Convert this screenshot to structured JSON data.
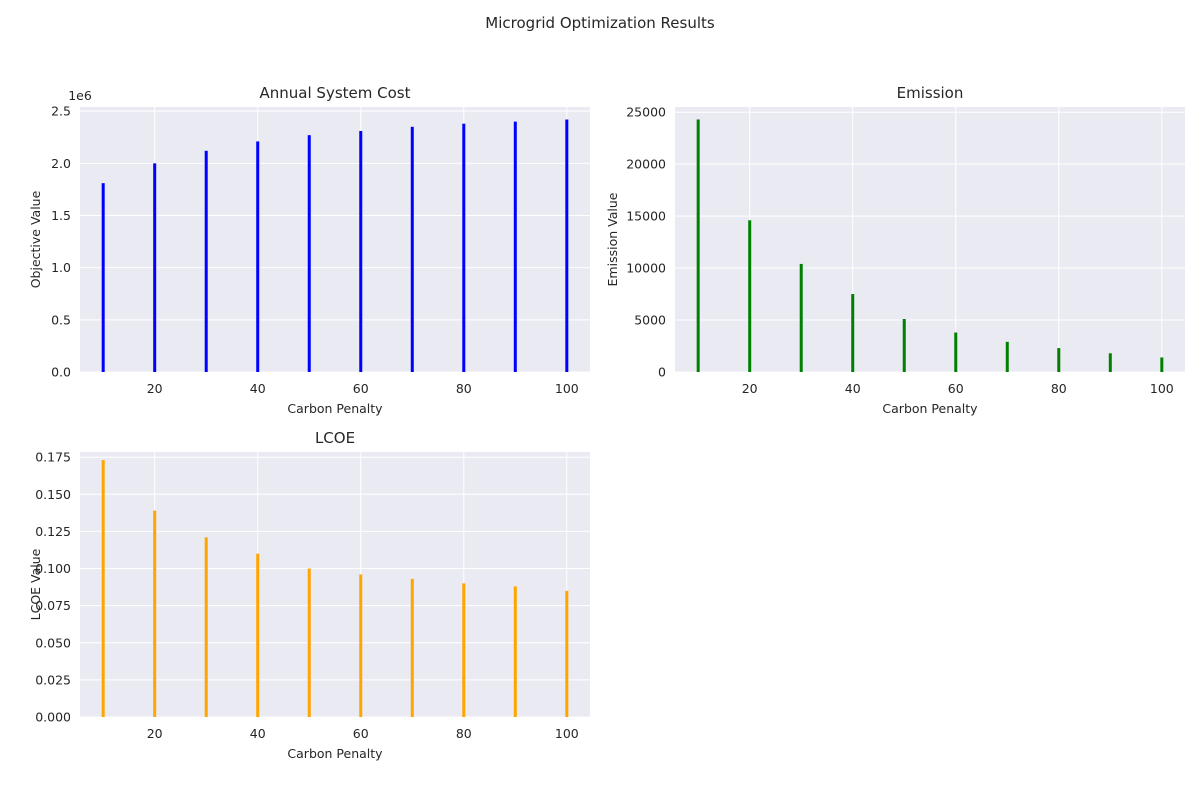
{
  "figure": {
    "suptitle": "Microgrid Optimization Results"
  },
  "chart_data": [
    {
      "type": "bar",
      "title": "Annual System Cost",
      "xlabel": "Carbon Penalty",
      "ylabel": "Objective Value",
      "offset_label": "1e6",
      "x": [
        10,
        20,
        30,
        40,
        50,
        60,
        70,
        80,
        90,
        100
      ],
      "values": [
        1810000,
        2000000,
        2120000,
        2210000,
        2270000,
        2310000,
        2350000,
        2380000,
        2400000,
        2420000
      ],
      "xlim": [
        5.5,
        104.5
      ],
      "ylim": [
        0,
        2.54
      ],
      "value_scale": 1000000,
      "xticks": [
        20,
        40,
        60,
        80,
        100
      ],
      "yticks": [
        0.0,
        0.5,
        1.0,
        1.5,
        2.0,
        2.5
      ],
      "ytick_decimals": 1,
      "color": "#0000ff",
      "grid": true
    },
    {
      "type": "bar",
      "title": "Emission",
      "xlabel": "Carbon Penalty",
      "ylabel": "Emission Value",
      "x": [
        10,
        20,
        30,
        40,
        50,
        60,
        70,
        80,
        90,
        100
      ],
      "values": [
        24300,
        14600,
        10400,
        7500,
        5100,
        3800,
        2900,
        2300,
        1800,
        1400
      ],
      "xlim": [
        5.5,
        104.5
      ],
      "ylim": [
        0,
        25500
      ],
      "value_scale": 1,
      "xticks": [
        20,
        40,
        60,
        80,
        100
      ],
      "yticks": [
        0,
        5000,
        10000,
        15000,
        20000,
        25000
      ],
      "ytick_decimals": 0,
      "color": "#008000",
      "grid": true
    },
    {
      "type": "bar",
      "title": "LCOE",
      "xlabel": "Carbon Penalty",
      "ylabel": "LCOE Value",
      "x": [
        10,
        20,
        30,
        40,
        50,
        60,
        70,
        80,
        90,
        100
      ],
      "values": [
        0.173,
        0.139,
        0.121,
        0.11,
        0.1,
        0.096,
        0.093,
        0.09,
        0.088,
        0.085
      ],
      "xlim": [
        5.5,
        104.5
      ],
      "ylim": [
        0,
        0.1785
      ],
      "value_scale": 1,
      "xticks": [
        20,
        40,
        60,
        80,
        100
      ],
      "yticks": [
        0.0,
        0.025,
        0.05,
        0.075,
        0.1,
        0.125,
        0.15,
        0.175
      ],
      "ytick_decimals": 3,
      "color": "#ffa500",
      "grid": true
    }
  ]
}
